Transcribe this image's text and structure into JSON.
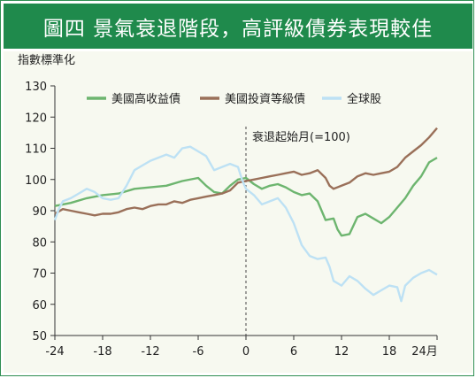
{
  "title": "圖四  景氣衰退階段，高評級債券表現較佳",
  "chart_data": {
    "type": "line",
    "ylabel": "指數標準化",
    "xlabel": "24月",
    "annotation": "衰退起始月(=100)",
    "xlim": [
      -24,
      24
    ],
    "ylim": [
      50,
      130
    ],
    "x_ticks": [
      "-24",
      "-18",
      "-12",
      "-6",
      "0",
      "6",
      "12",
      "18"
    ],
    "y_ticks": [
      "130",
      "120",
      "110",
      "100",
      "90",
      "80",
      "70",
      "60",
      "50"
    ],
    "legend_position": "top",
    "series": [
      {
        "name": "美國高收益債",
        "color": "#6db56f",
        "points": [
          [
            -24,
            91.5
          ],
          [
            -22,
            92.5
          ],
          [
            -20,
            94
          ],
          [
            -18,
            95
          ],
          [
            -16,
            95.5
          ],
          [
            -14,
            97
          ],
          [
            -12,
            97.5
          ],
          [
            -10,
            98
          ],
          [
            -8,
            99.5
          ],
          [
            -6,
            100.5
          ],
          [
            -5,
            98
          ],
          [
            -4,
            96
          ],
          [
            -3,
            95.5
          ],
          [
            -2,
            98
          ],
          [
            -1,
            100
          ],
          [
            0,
            100.5
          ],
          [
            1,
            98.5
          ],
          [
            2,
            97
          ],
          [
            3,
            98
          ],
          [
            4,
            98.5
          ],
          [
            5,
            97.5
          ],
          [
            6,
            96
          ],
          [
            7,
            95
          ],
          [
            8,
            95.5
          ],
          [
            9,
            93
          ],
          [
            10,
            87
          ],
          [
            11,
            87.5
          ],
          [
            11.5,
            84
          ],
          [
            12,
            82
          ],
          [
            13,
            82.5
          ],
          [
            14,
            88
          ],
          [
            15,
            89
          ],
          [
            16,
            87.5
          ],
          [
            17,
            86
          ],
          [
            18,
            88
          ],
          [
            19,
            91
          ],
          [
            20,
            94
          ],
          [
            21,
            98
          ],
          [
            22,
            101
          ],
          [
            23,
            105.5
          ],
          [
            24,
            107
          ]
        ]
      },
      {
        "name": "美國投資等級債",
        "color": "#9a7059",
        "points": [
          [
            -24,
            89
          ],
          [
            -23,
            90.5
          ],
          [
            -22,
            90
          ],
          [
            -21,
            89.5
          ],
          [
            -20,
            89
          ],
          [
            -19,
            88.5
          ],
          [
            -18,
            89
          ],
          [
            -17,
            89
          ],
          [
            -16,
            89.5
          ],
          [
            -15,
            90.5
          ],
          [
            -14,
            91
          ],
          [
            -13,
            90.5
          ],
          [
            -12,
            91.5
          ],
          [
            -11,
            92
          ],
          [
            -10,
            92
          ],
          [
            -9,
            93
          ],
          [
            -8,
            92.5
          ],
          [
            -7,
            93.5
          ],
          [
            -6,
            94
          ],
          [
            -5,
            94.5
          ],
          [
            -4,
            95
          ],
          [
            -3,
            95.5
          ],
          [
            -2,
            96.5
          ],
          [
            -1,
            99
          ],
          [
            0,
            99.5
          ],
          [
            1,
            100
          ],
          [
            2,
            100.5
          ],
          [
            3,
            101
          ],
          [
            4,
            101.5
          ],
          [
            5,
            102
          ],
          [
            6,
            102.5
          ],
          [
            7,
            101.5
          ],
          [
            8,
            102
          ],
          [
            9,
            103
          ],
          [
            10,
            100.5
          ],
          [
            10.5,
            98
          ],
          [
            11,
            97
          ],
          [
            12,
            98
          ],
          [
            13,
            99
          ],
          [
            14,
            101
          ],
          [
            15,
            102
          ],
          [
            16,
            101.5
          ],
          [
            17,
            102
          ],
          [
            18,
            102.5
          ],
          [
            19,
            104
          ],
          [
            20,
            107
          ],
          [
            21,
            109
          ],
          [
            22,
            111
          ],
          [
            23,
            113.5
          ],
          [
            24,
            116.5
          ]
        ]
      },
      {
        "name": "全球股",
        "color": "#bde1f4",
        "points": [
          [
            -24,
            87
          ],
          [
            -23.5,
            90.5
          ],
          [
            -23,
            93
          ],
          [
            -22,
            94
          ],
          [
            -21,
            95.5
          ],
          [
            -20,
            97
          ],
          [
            -19,
            96
          ],
          [
            -18,
            94
          ],
          [
            -17,
            93.5
          ],
          [
            -16,
            94
          ],
          [
            -15,
            98
          ],
          [
            -14,
            103
          ],
          [
            -13,
            104.5
          ],
          [
            -12,
            106
          ],
          [
            -11,
            107
          ],
          [
            -10,
            108
          ],
          [
            -9,
            107
          ],
          [
            -8,
            110
          ],
          [
            -7,
            110.5
          ],
          [
            -6,
            109
          ],
          [
            -5,
            107.5
          ],
          [
            -4,
            103
          ],
          [
            -3,
            104
          ],
          [
            -2,
            105
          ],
          [
            -1,
            104
          ],
          [
            -0.5,
            100
          ],
          [
            0,
            97
          ],
          [
            1,
            95
          ],
          [
            2,
            92
          ],
          [
            3,
            93
          ],
          [
            4,
            94
          ],
          [
            5,
            91
          ],
          [
            6,
            86
          ],
          [
            7,
            79
          ],
          [
            8,
            75.5
          ],
          [
            9,
            74.5
          ],
          [
            10,
            75
          ],
          [
            10.5,
            72
          ],
          [
            11,
            67.5
          ],
          [
            12,
            66
          ],
          [
            13,
            69
          ],
          [
            14,
            67.5
          ],
          [
            15,
            65
          ],
          [
            16,
            63
          ],
          [
            17,
            64.5
          ],
          [
            18,
            66
          ],
          [
            19,
            65.5
          ],
          [
            19.5,
            61
          ],
          [
            20,
            66
          ],
          [
            21,
            68.5
          ],
          [
            22,
            70
          ],
          [
            23,
            71
          ],
          [
            24,
            69.5
          ]
        ]
      }
    ]
  }
}
